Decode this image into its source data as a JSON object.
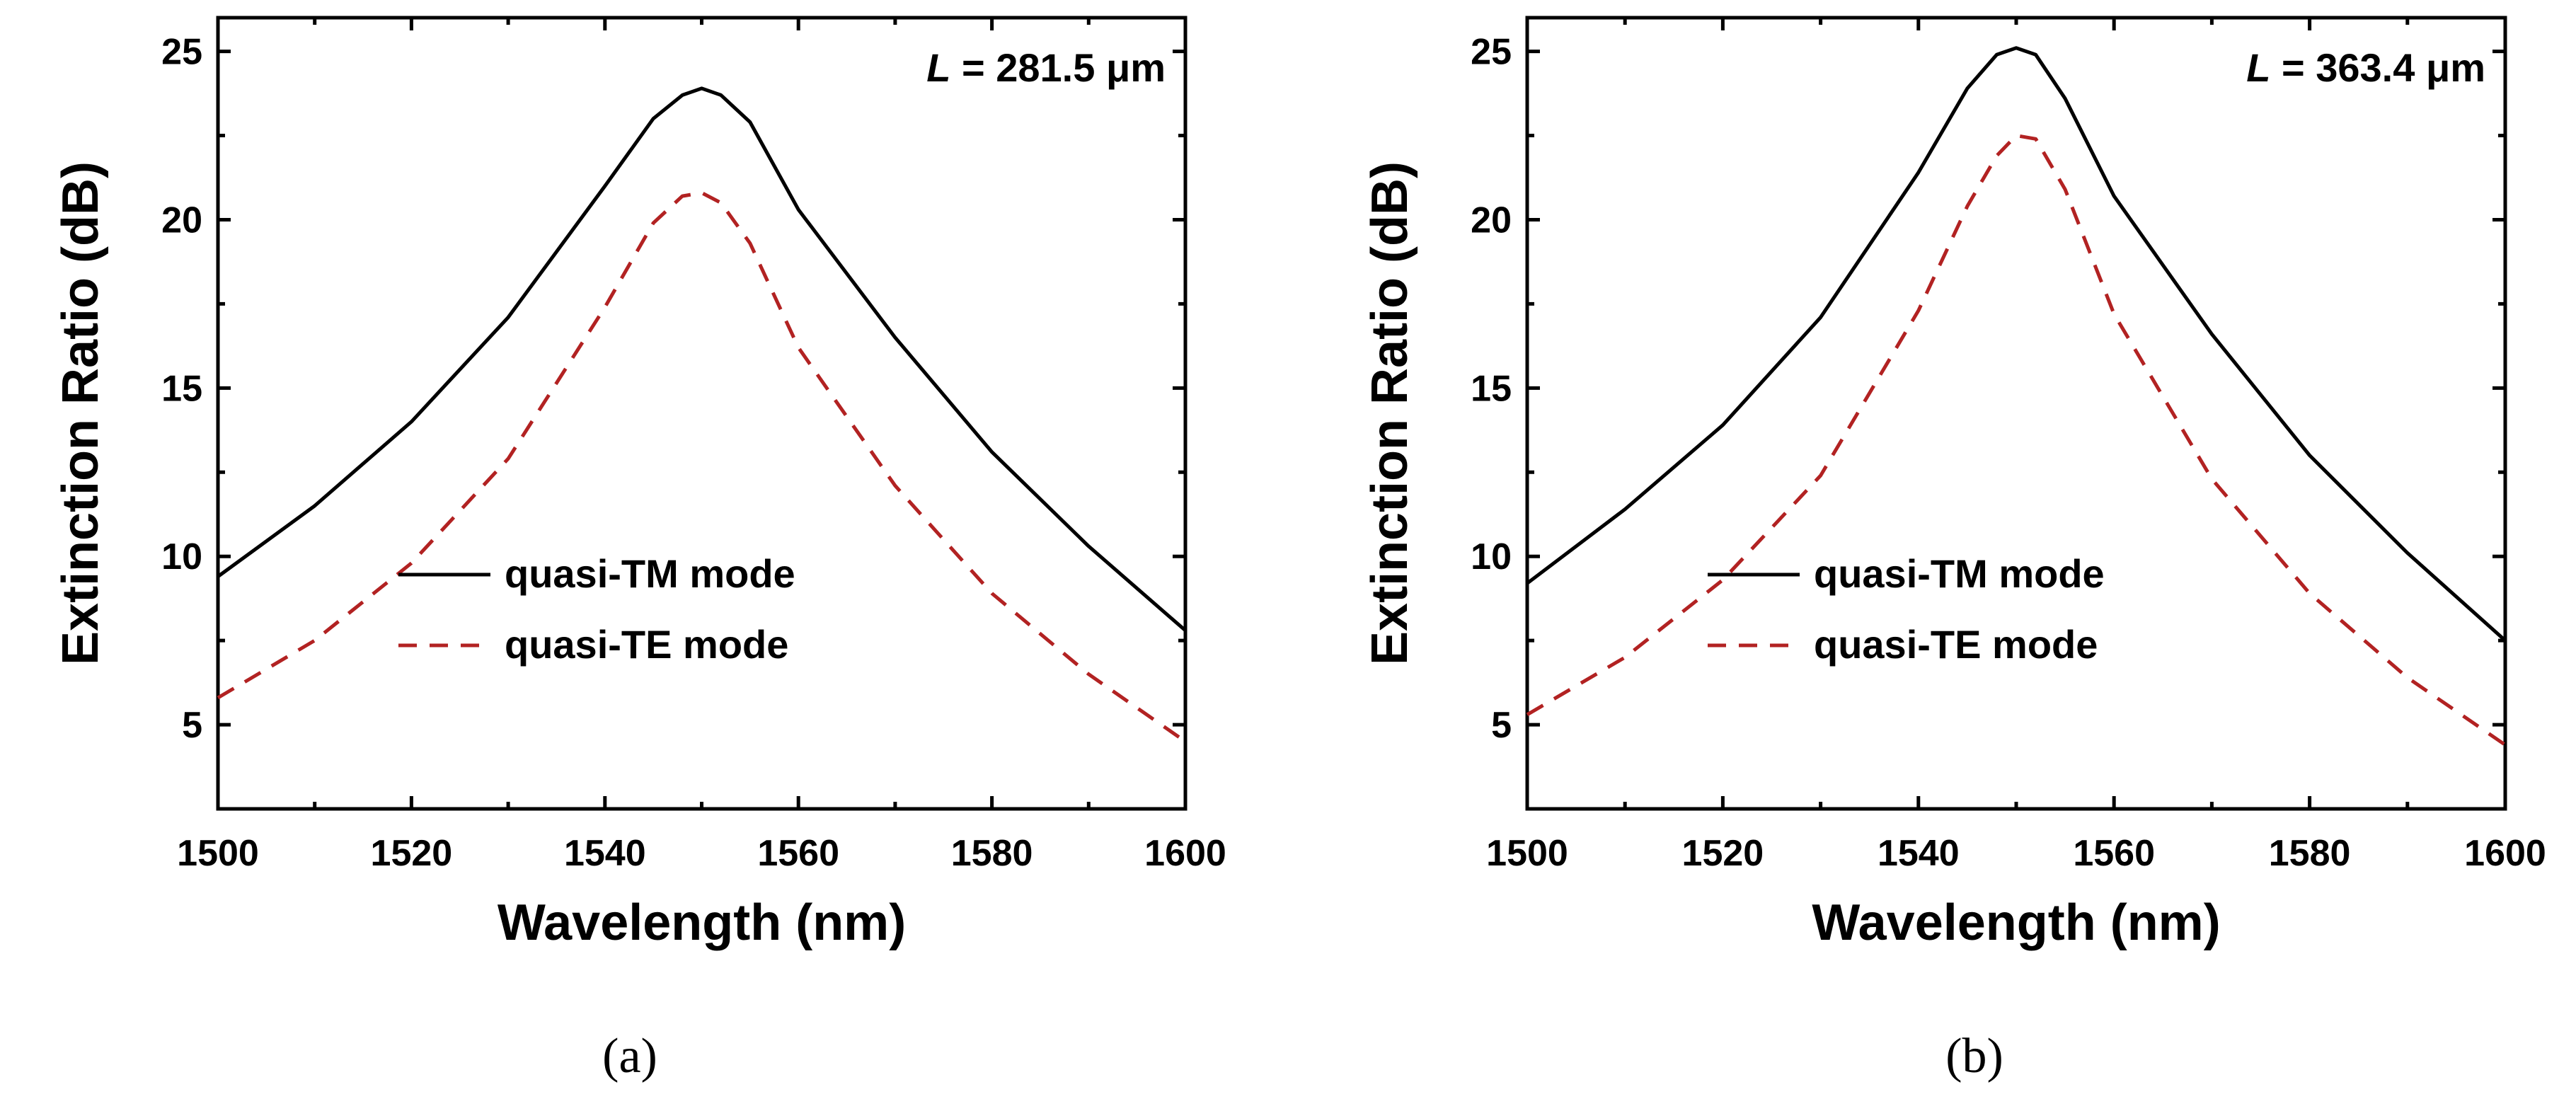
{
  "chart_data": [
    {
      "type": "line",
      "panel": "(a)",
      "xlabel": "Wavelength (nm)",
      "ylabel": "Extinction Ratio (dB)",
      "xlim": [
        1500,
        1600
      ],
      "ylim": [
        2.5,
        26
      ],
      "xticks": [
        1500,
        1520,
        1540,
        1560,
        1580,
        1600
      ],
      "yticks": [
        5,
        10,
        15,
        20,
        25
      ],
      "annotation": {
        "var": "L",
        "rest": " = 281.5 μm"
      },
      "legend_position": "center",
      "series": [
        {
          "name": "quasi-TM mode",
          "style": "solid",
          "color": "#000000",
          "x": [
            1500,
            1510,
            1520,
            1530,
            1540,
            1545,
            1548,
            1550,
            1552,
            1555,
            1560,
            1570,
            1580,
            1590,
            1600
          ],
          "y": [
            9.4,
            11.5,
            14.0,
            17.1,
            21.0,
            23.0,
            23.7,
            23.9,
            23.7,
            22.9,
            20.3,
            16.5,
            13.1,
            10.3,
            7.8
          ]
        },
        {
          "name": "quasi-TE mode",
          "style": "dashed",
          "color": "#b22222",
          "x": [
            1500,
            1510,
            1520,
            1530,
            1540,
            1545,
            1548,
            1550,
            1552,
            1555,
            1560,
            1570,
            1580,
            1590,
            1600
          ],
          "y": [
            5.8,
            7.5,
            9.8,
            12.9,
            17.4,
            19.9,
            20.7,
            20.8,
            20.5,
            19.3,
            16.2,
            12.1,
            8.9,
            6.5,
            4.5
          ]
        }
      ]
    },
    {
      "type": "line",
      "panel": "(b)",
      "xlabel": "Wavelength (nm)",
      "ylabel": "Extinction Ratio (dB)",
      "xlim": [
        1500,
        1600
      ],
      "ylim": [
        2.5,
        26
      ],
      "xticks": [
        1500,
        1520,
        1540,
        1560,
        1580,
        1600
      ],
      "yticks": [
        5,
        10,
        15,
        20,
        25
      ],
      "annotation": {
        "var": "L",
        "rest": " = 363.4 μm"
      },
      "legend_position": "center",
      "series": [
        {
          "name": "quasi-TM mode",
          "style": "solid",
          "color": "#000000",
          "x": [
            1500,
            1510,
            1520,
            1530,
            1540,
            1545,
            1548,
            1550,
            1552,
            1555,
            1560,
            1570,
            1580,
            1590,
            1600
          ],
          "y": [
            9.2,
            11.4,
            13.9,
            17.1,
            21.4,
            23.9,
            24.9,
            25.1,
            24.9,
            23.6,
            20.7,
            16.6,
            13.0,
            10.1,
            7.5
          ]
        },
        {
          "name": "quasi-TE mode",
          "style": "dashed",
          "color": "#b22222",
          "x": [
            1500,
            1510,
            1520,
            1530,
            1540,
            1545,
            1548,
            1550,
            1552,
            1555,
            1560,
            1570,
            1580,
            1590,
            1600
          ],
          "y": [
            5.3,
            7.0,
            9.3,
            12.4,
            17.3,
            20.4,
            21.9,
            22.5,
            22.4,
            20.9,
            17.2,
            12.3,
            8.9,
            6.4,
            4.4
          ]
        }
      ]
    }
  ]
}
